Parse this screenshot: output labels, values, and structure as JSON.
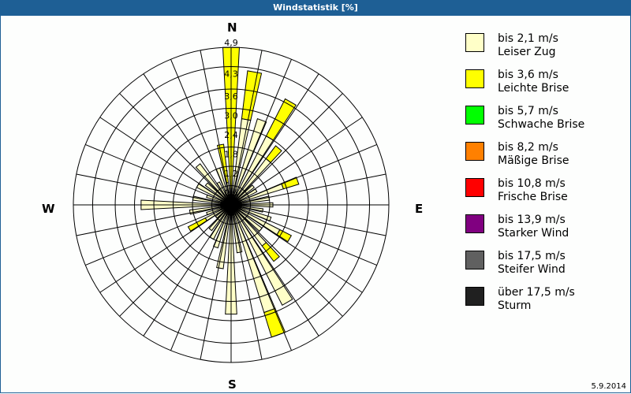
{
  "title": "Windstatistik [%]",
  "compass": {
    "n": "N",
    "e": "E",
    "s": "S",
    "w": "W"
  },
  "ring_labels": [
    "0,6",
    "1,2",
    "1,8",
    "2,4",
    "3,0",
    "3,6",
    "4,3",
    "4,9"
  ],
  "legend": [
    {
      "line1": "bis 2,1 m/s",
      "line2": "Leiser Zug",
      "color": "#ffffc8"
    },
    {
      "line1": "bis 3,6 m/s",
      "line2": "Leichte Brise",
      "color": "#ffff00"
    },
    {
      "line1": "bis 5,7 m/s",
      "line2": "Schwache Brise",
      "color": "#00ff00"
    },
    {
      "line1": "bis 8,2 m/s",
      "line2": "Mäßige Brise",
      "color": "#ff8000"
    },
    {
      "line1": "bis 10,8 m/s",
      "line2": "Frische Brise",
      "color": "#ff0000"
    },
    {
      "line1": "bis 13,9 m/s",
      "line2": "Starker Wind",
      "color": "#800080"
    },
    {
      "line1": "bis 17,5 m/s",
      "line2": "Steifer Wind",
      "color": "#606060"
    },
    {
      "line1": "über 17,5 m/s",
      "line2": "Sturm",
      "color": "#202020"
    }
  ],
  "date": "5.9.2014",
  "chart_data": {
    "type": "polar-bar",
    "title": "Windstatistik [%]",
    "rmax": 4.9,
    "ring_ticks": [
      0.6,
      1.2,
      1.8,
      2.4,
      3.0,
      3.6,
      4.3,
      4.9
    ],
    "directions_deg": [
      0,
      10,
      20,
      30,
      40,
      50,
      60,
      70,
      80,
      90,
      100,
      110,
      120,
      130,
      140,
      150,
      160,
      170,
      180,
      190,
      200,
      210,
      220,
      230,
      240,
      250,
      260,
      270,
      280,
      290,
      300,
      310,
      320,
      330,
      340,
      350
    ],
    "series": [
      {
        "name": "bis 2,1 m/s (Leiser Zug)",
        "color": "#ffffc8",
        "values": [
          0.5,
          2.7,
          2.8,
          2.4,
          1.8,
          0.9,
          0.9,
          1.7,
          1.2,
          1.3,
          1.0,
          1.3,
          1.7,
          1.2,
          1.6,
          3.5,
          3.5,
          1.5,
          3.4,
          2.0,
          1.4,
          1.2,
          1.0,
          0.6,
          0.9,
          0.8,
          1.3,
          2.8,
          1.2,
          0.8,
          1.2,
          1.0,
          1.6,
          0.8,
          1.2,
          0.7
        ]
      },
      {
        "name": "bis 3,6 m/s (Leichte Brise)",
        "color": "#ffff00",
        "values": [
          4.4,
          1.5,
          0,
          1.3,
          0.5,
          0,
          0,
          0.5,
          0,
          0,
          0,
          0,
          0.4,
          0,
          0.6,
          0,
          0.8,
          0,
          0,
          0,
          0,
          0,
          0,
          0,
          0.6,
          0,
          0,
          0,
          0,
          0,
          0,
          0,
          0,
          0,
          0,
          1.2
        ]
      }
    ]
  }
}
